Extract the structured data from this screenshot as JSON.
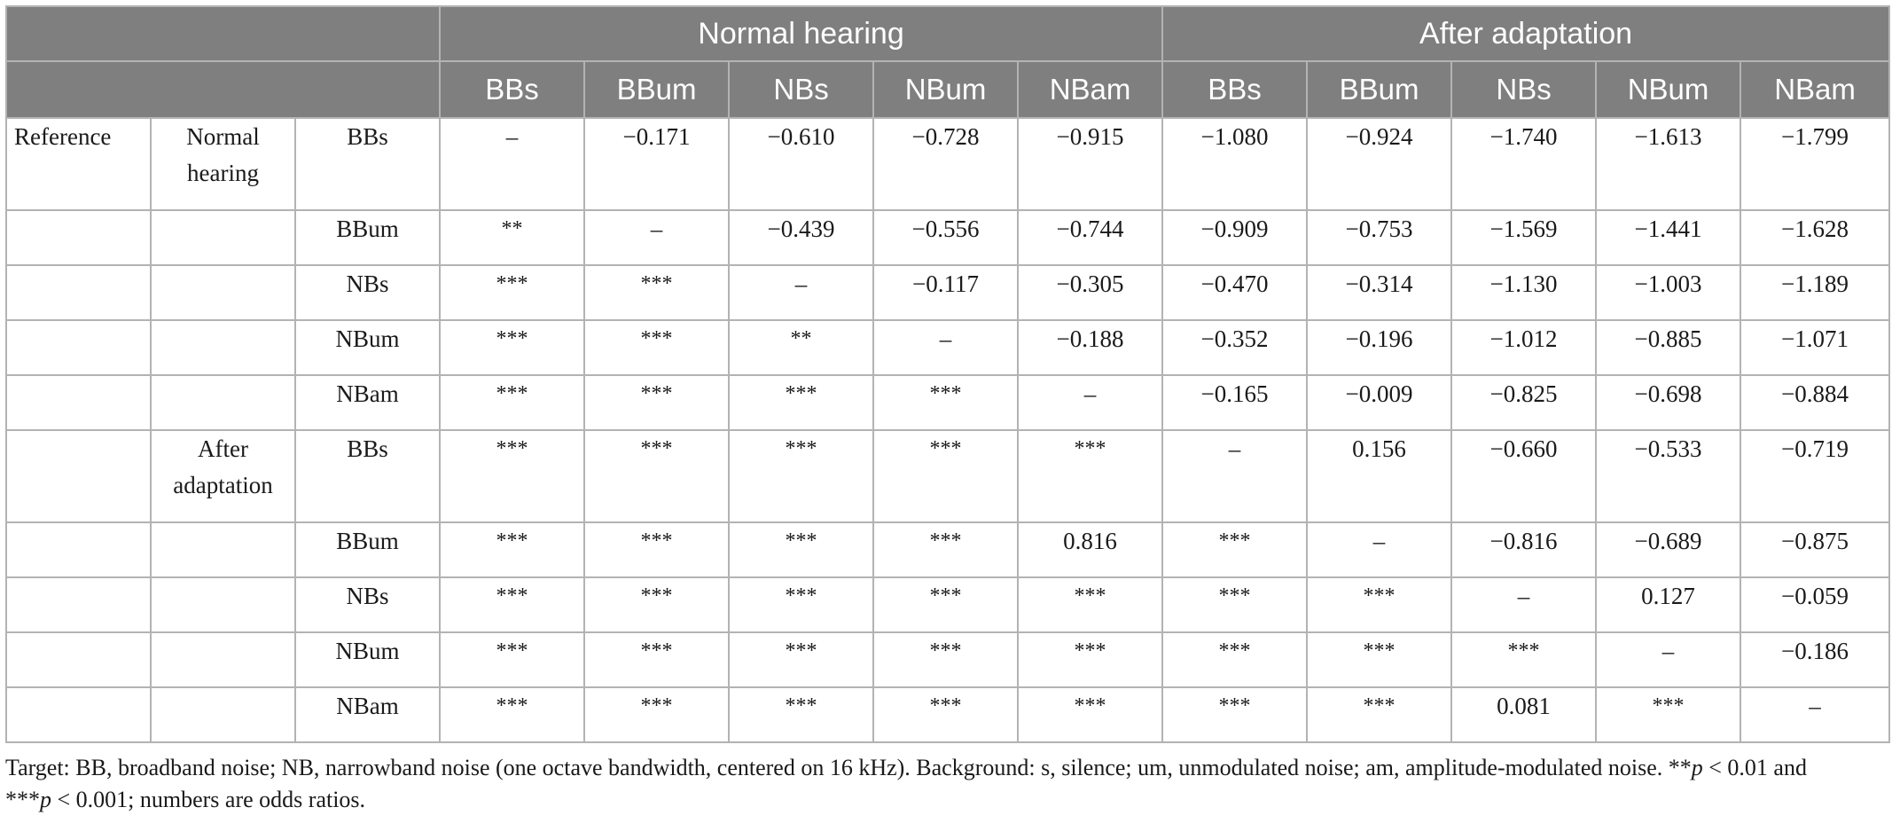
{
  "header": {
    "group_normal": "Normal hearing",
    "group_after": "After adaptation",
    "columns": [
      "BBs",
      "BBum",
      "NBs",
      "NBum",
      "NBam",
      "BBs",
      "BBum",
      "NBs",
      "NBum",
      "NBam"
    ]
  },
  "rows": [
    {
      "label1": "Reference",
      "label2": "Normal hearing",
      "label3": "BBs",
      "cells": [
        "–",
        "−0.171",
        "−0.610",
        "−0.728",
        "−0.915",
        "−1.080",
        "−0.924",
        "−1.740",
        "−1.613",
        "−1.799"
      ]
    },
    {
      "label1": "",
      "label2": "",
      "label3": "BBum",
      "cells": [
        "**",
        "–",
        "−0.439",
        "−0.556",
        "−0.744",
        "−0.909",
        "−0.753",
        "−1.569",
        "−1.441",
        "−1.628"
      ]
    },
    {
      "label1": "",
      "label2": "",
      "label3": "NBs",
      "cells": [
        "***",
        "***",
        "–",
        "−0.117",
        "−0.305",
        "−0.470",
        "−0.314",
        "−1.130",
        "−1.003",
        "−1.189"
      ]
    },
    {
      "label1": "",
      "label2": "",
      "label3": "NBum",
      "cells": [
        "***",
        "***",
        "**",
        "–",
        "−0.188",
        "−0.352",
        "−0.196",
        "−1.012",
        "−0.885",
        "−1.071"
      ]
    },
    {
      "label1": "",
      "label2": "",
      "label3": "NBam",
      "cells": [
        "***",
        "***",
        "***",
        "***",
        "–",
        "−0.165",
        "−0.009",
        "−0.825",
        "−0.698",
        "−0.884"
      ]
    },
    {
      "label1": "",
      "label2": "After adaptation",
      "label3": "BBs",
      "cells": [
        "***",
        "***",
        "***",
        "***",
        "***",
        "–",
        "0.156",
        "−0.660",
        "−0.533",
        "−0.719"
      ]
    },
    {
      "label1": "",
      "label2": "",
      "label3": "BBum",
      "cells": [
        "***",
        "***",
        "***",
        "***",
        "0.816",
        "***",
        "–",
        "−0.816",
        "−0.689",
        "−0.875"
      ]
    },
    {
      "label1": "",
      "label2": "",
      "label3": "NBs",
      "cells": [
        "***",
        "***",
        "***",
        "***",
        "***",
        "***",
        "***",
        "–",
        "0.127",
        "−0.059"
      ]
    },
    {
      "label1": "",
      "label2": "",
      "label3": "NBum",
      "cells": [
        "***",
        "***",
        "***",
        "***",
        "***",
        "***",
        "***",
        "***",
        "–",
        "−0.186"
      ]
    },
    {
      "label1": "",
      "label2": "",
      "label3": "NBam",
      "cells": [
        "***",
        "***",
        "***",
        "***",
        "***",
        "***",
        "***",
        "0.081",
        "***",
        "–"
      ]
    }
  ],
  "footnote": {
    "part1": "Target: BB, broadband noise; NB, narrowband noise (one octave bandwidth, centered on 16 kHz). Background: s, silence; um, unmodulated noise; am, amplitude-modulated noise. **",
    "p1": "p",
    "part2": " < 0.01 and",
    "part3": "***",
    "p2": "p",
    "part4": " < 0.001; numbers are odds ratios."
  }
}
